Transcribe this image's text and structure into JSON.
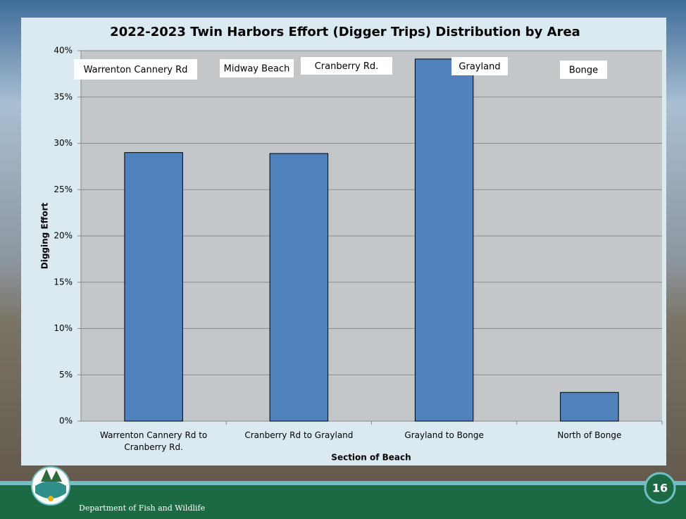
{
  "chart_data": {
    "type": "bar",
    "title": "2022-2023 Twin Harbors Effort (Digger Trips) Distribution by Area",
    "x_label": "Section of Beach",
    "y_label": "Digging Effort",
    "categories": [
      "Warrenton Cannery Rd to Cranberry Rd.",
      "Cranberry Rd to Grayland",
      "Grayland to Bonge",
      "North of Bonge"
    ],
    "values": [
      29,
      28.9,
      39.1,
      3.1
    ],
    "color": "#4f81bd",
    "ylim": [
      0,
      40
    ],
    "yticks": [
      {
        "value": 0,
        "label": "0%"
      },
      {
        "value": 5,
        "label": "5%"
      },
      {
        "value": 10,
        "label": "10%"
      },
      {
        "value": 15,
        "label": "15%"
      },
      {
        "value": 20,
        "label": "20%"
      },
      {
        "value": 25,
        "label": "25%"
      },
      {
        "value": 30,
        "label": "30%"
      },
      {
        "value": 35,
        "label": "35%"
      },
      {
        "value": 40,
        "label": "40%"
      }
    ],
    "grid": true,
    "annotations": [
      "Warrenton Cannery Rd",
      "Midway Beach",
      "Cranberry Rd.",
      "Grayland",
      "Bonge"
    ]
  },
  "footer": {
    "organization": "Department of Fish and Wildlife",
    "page_number": "16"
  }
}
